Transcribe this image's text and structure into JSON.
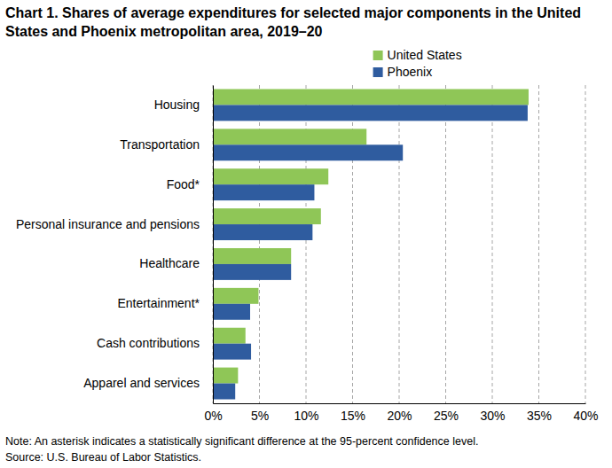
{
  "chart_data": {
    "type": "bar",
    "orientation": "horizontal",
    "title": "Chart 1. Shares of average expenditures for selected major components in the United States and Phoenix metropolitan area, 2019–20",
    "categories": [
      "Housing",
      "Transportation",
      "Food*",
      "Personal insurance and pensions",
      "Healthcare",
      "Entertainment*",
      "Cash contributions",
      "Apparel and services"
    ],
    "series": [
      {
        "name": "United States",
        "color": "#8fc657",
        "values": [
          33.9,
          16.5,
          12.4,
          11.6,
          8.4,
          4.9,
          3.5,
          2.7
        ]
      },
      {
        "name": "Phoenix",
        "color": "#2f5c9f",
        "values": [
          33.8,
          20.4,
          10.9,
          10.7,
          8.4,
          4.0,
          4.1,
          2.4
        ]
      }
    ],
    "xlim": [
      0,
      40
    ],
    "xticks": [
      {
        "value": 0,
        "label": "0%"
      },
      {
        "value": 5,
        "label": "5%"
      },
      {
        "value": 10,
        "label": "10%"
      },
      {
        "value": 15,
        "label": "15%"
      },
      {
        "value": 20,
        "label": "20%"
      },
      {
        "value": 25,
        "label": "25%"
      },
      {
        "value": 30,
        "label": "30%"
      },
      {
        "value": 35,
        "label": "35%"
      },
      {
        "value": 40,
        "label": "40%"
      }
    ],
    "grid": true,
    "legend": "top-right",
    "note": "Note: An asterisk indicates a statistically significant difference at the 95-percent confidence level.",
    "source": "Source: U.S. Bureau of Labor Statistics."
  }
}
